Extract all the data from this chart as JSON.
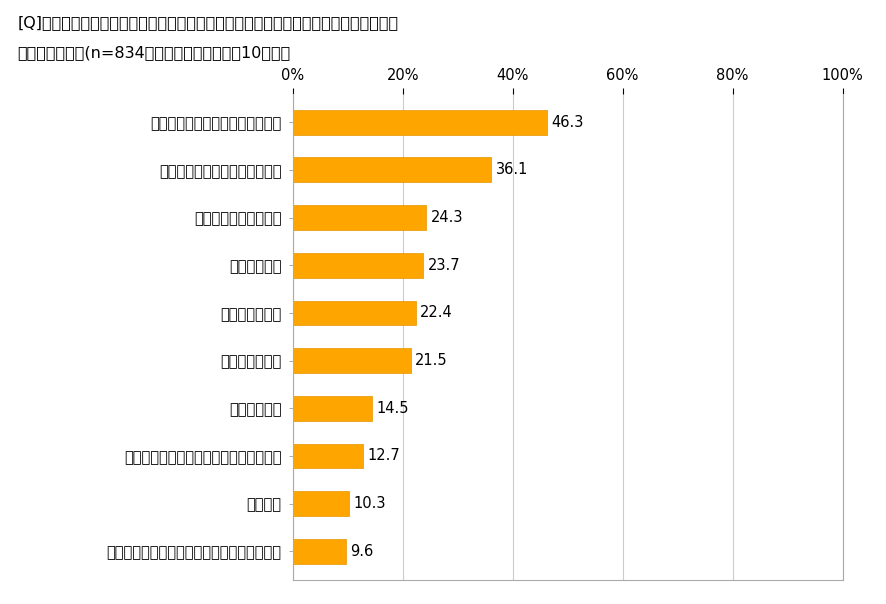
{
  "title_line1": "[Q]ご自宅で韓国料理を作るときのお悩みや困りごと、気になることを、いくつでも教",
  "title_line2": "えてください。(n=834・複数回答のうち上位10項目）",
  "categories": [
    "食材や調味料をそろえるのが大変",
    "お店のような味に仕上がらない",
    "レパートリーが少ない",
    "手間がかかる",
    "味が決まらない",
    "材料費がかかる",
    "時間がかかる",
    "自分の好みに合うレシピが見つからない",
    "特にない",
    "韓国の食材が欲しいが韓国産かわかりにくい"
  ],
  "values": [
    46.3,
    36.1,
    24.3,
    23.7,
    22.4,
    21.5,
    14.5,
    12.7,
    10.3,
    9.6
  ],
  "bar_color": "#FFA500",
  "bar_edge_color": "#E69500",
  "xlim": [
    0,
    100
  ],
  "xtick_labels": [
    "0%",
    "20%",
    "40%",
    "60%",
    "80%",
    "100%"
  ],
  "xtick_values": [
    0,
    20,
    40,
    60,
    80,
    100
  ],
  "background_color": "#ffffff",
  "plot_bg_color": "#ffffff",
  "grid_color": "#cccccc",
  "border_color": "#aaaaaa",
  "title_fontsize": 11.5,
  "label_fontsize": 10.5,
  "value_fontsize": 10.5,
  "tick_fontsize": 10.5,
  "bar_height": 0.52
}
